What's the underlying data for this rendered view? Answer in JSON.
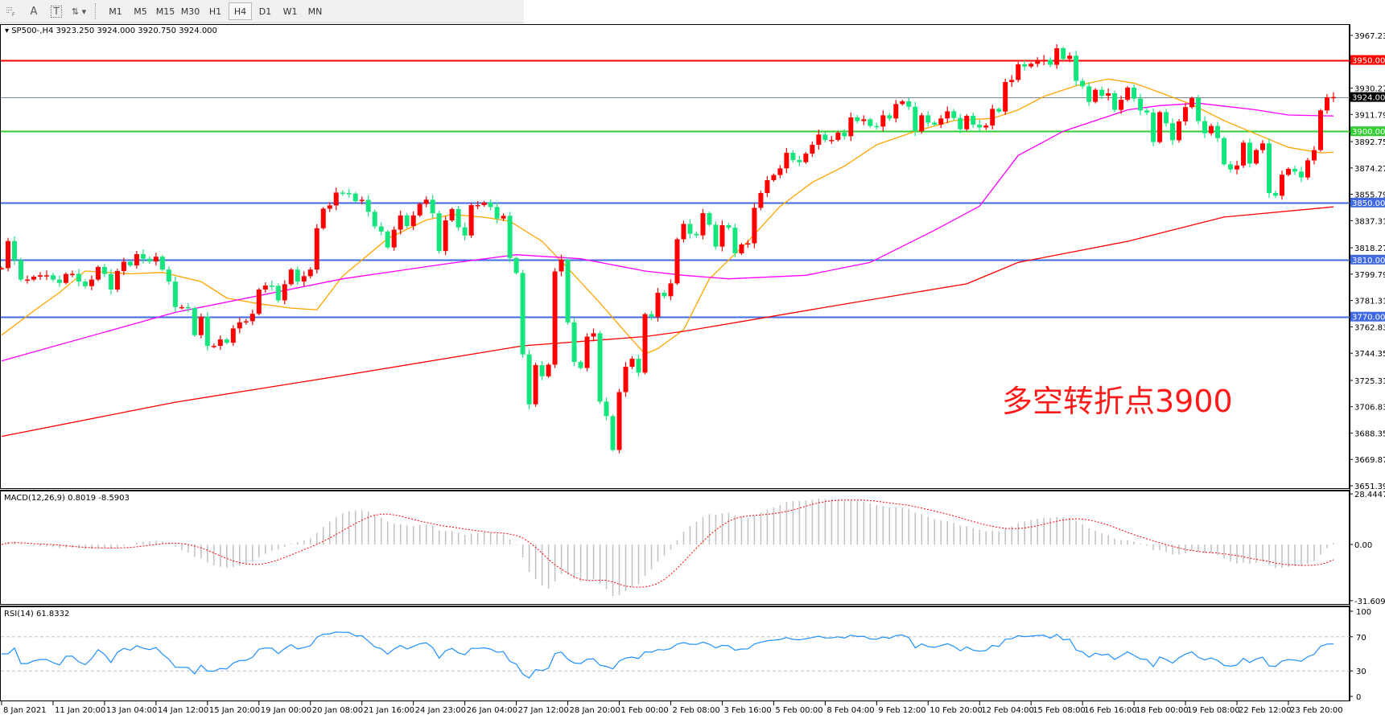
{
  "toolbar": {
    "tools": [
      {
        "icon": "grid-properties-icon",
        "label": ""
      },
      {
        "icon": "text-a-icon",
        "label": "A"
      },
      {
        "icon": "text-label-icon",
        "label": "T"
      },
      {
        "icon": "arrows-dropdown-icon",
        "label": ""
      }
    ],
    "timeframes": [
      "M1",
      "M5",
      "M15",
      "M30",
      "H1",
      "H4",
      "D1",
      "W1",
      "MN"
    ],
    "active_timeframe": "H4"
  },
  "chart_data": {
    "type": "candlestick",
    "header": "SP500-,H4  3923.250 3924.000 3920.750 3924.000",
    "bull_color": "#ff0000",
    "bear_color": "#14e67d",
    "ylim": [
      3651.39,
      3967.23
    ],
    "price_ticks": [
      "3967.230",
      "3930.270",
      "3911.790",
      "3892.750",
      "3874.270",
      "3855.790",
      "3837.310",
      "3818.270",
      "3799.790",
      "3781.310",
      "3762.830",
      "3744.350",
      "3725.310",
      "3706.830",
      "3688.350",
      "3669.870",
      "3651.390"
    ],
    "time_labels": [
      "8 Jan 2021",
      "11 Jan 20:00",
      "13 Jan 04:00",
      "14 Jan 12:00",
      "15 Jan 20:00",
      "19 Jan 00:00",
      "20 Jan 08:00",
      "21 Jan 16:00",
      "24 Jan 23:00",
      "26 Jan 04:00",
      "27 Jan 12:00",
      "28 Jan 20:00",
      "1 Feb 00:00",
      "2 Feb 08:00",
      "3 Feb 16:00",
      "5 Feb 00:00",
      "8 Feb 04:00",
      "9 Feb 12:00",
      "10 Feb 20:00",
      "12 Feb 04:00",
      "15 Feb 08:00",
      "16 Feb 16:00",
      "18 Feb 00:00",
      "19 Feb 08:00",
      "22 Feb 12:00",
      "23 Feb 20:00"
    ],
    "closes": [
      3804,
      3823,
      3809.6,
      3796,
      3796,
      3798,
      3799,
      3799,
      3796,
      3793.7,
      3799.9,
      3800,
      3794.6,
      3791.4,
      3796,
      3804.8,
      3799.9,
      3789,
      3802,
      3808.5,
      3805.9,
      3813.8,
      3810.6,
      3808.7,
      3812,
      3803,
      3794.6,
      3776.7,
      3776.7,
      3776,
      3757,
      3770,
      3749.5,
      3749.5,
      3754,
      3751.7,
      3761.7,
      3766,
      3766.8,
      3772,
      3789,
      3791.8,
      3791.6,
      3781.4,
      3792.7,
      3803,
      3794.6,
      3798.4,
      3803,
      3832,
      3845.7,
      3848,
      3857,
      3856.6,
      3856.3,
      3851,
      3851.9,
      3843.5,
      3833.3,
      3829.7,
      3818.5,
      3831,
      3841,
      3833.5,
      3841,
      3849,
      3852,
      3842.5,
      3816,
      3837.5,
      3845.4,
      3832.6,
      3826.9,
      3848.2,
      3848.2,
      3850,
      3846.9,
      3838.8,
      3840.7,
      3811.1,
      3800.6,
      3743.5,
      3708.5,
      3736,
      3728.2,
      3736.3,
      3801.7,
      3810,
      3766,
      3738.2,
      3734,
      3756,
      3758.3,
      3710.4,
      3700.2,
      3676.5,
      3717.1,
      3734.8,
      3740.5,
      3730.7,
      3771.7,
      3769.8,
      3786.7,
      3784.3,
      3793.3,
      3824.3,
      3835,
      3828.1,
      3827,
      3842.6,
      3834.5,
      3819.1,
      3834.1,
      3832.3,
      3814.4,
      3820.6,
      3821.4,
      3846.3,
      3856.7,
      3865.7,
      3869.3,
      3874,
      3884.9,
      3879.8,
      3878.3,
      3884.3,
      3890.5,
      3897.7,
      3893.9,
      3893.9,
      3899,
      3896.5,
      3909.7,
      3907.1,
      3908.4,
      3903.7,
      3903.3,
      3911.2,
      3909,
      3919.1,
      3921,
      3917.2,
      3900,
      3911.2,
      3906,
      3904.6,
      3909,
      3914,
      3909.3,
      3901.4,
      3910.8,
      3904.6,
      3902.6,
      3904,
      3915.7,
      3913.8,
      3934.5,
      3936,
      3946.9,
      3945.4,
      3947.3,
      3949.7,
      3950.1,
      3946.6,
      3958.2,
      3950.7,
      3953,
      3935.3,
      3931.5,
      3920.6,
      3929.1,
      3924.9,
      3926.6,
      3915,
      3922.1,
      3930.6,
      3922.9,
      3914.6,
      3913.1,
      3892.4,
      3913.4,
      3905.6,
      3893.7,
      3906.9,
      3916.9,
      3923.2,
      3907.1,
      3898.6,
      3903.7,
      3895.2,
      3876.8,
      3873.2,
      3876,
      3892,
      3877.4,
      3886.8,
      3891.5,
      3856.7,
      3854.8,
      3869.5,
      3873.6,
      3871.7,
      3867.6,
      3879.6,
      3886.8,
      3914.6,
      3923.8,
      3924
    ],
    "moving_averages": [
      {
        "color": "#ffa500",
        "points": [
          [
            0,
            3757
          ],
          [
            5,
            3774
          ],
          [
            9,
            3787
          ],
          [
            13,
            3802
          ],
          [
            20,
            3800
          ],
          [
            25,
            3801
          ],
          [
            31,
            3794.6
          ],
          [
            35,
            3783
          ],
          [
            40,
            3779
          ],
          [
            45,
            3776
          ],
          [
            49,
            3774.8
          ],
          [
            53,
            3798.4
          ],
          [
            55,
            3805.9
          ],
          [
            60,
            3824.7
          ],
          [
            66,
            3837.8
          ],
          [
            70,
            3841.6
          ],
          [
            75,
            3839.7
          ],
          [
            79,
            3836.9
          ],
          [
            84,
            3822.8
          ],
          [
            88,
            3804
          ],
          [
            93,
            3779.6
          ],
          [
            97,
            3758.9
          ],
          [
            100,
            3743.8
          ],
          [
            102,
            3747.6
          ],
          [
            106,
            3760.8
          ],
          [
            110,
            3796.5
          ],
          [
            116,
            3822.8
          ],
          [
            121,
            3847.3
          ],
          [
            126,
            3864.2
          ],
          [
            131,
            3875.5
          ],
          [
            136,
            3890.5
          ],
          [
            142,
            3899.9
          ],
          [
            148,
            3907.5
          ],
          [
            154,
            3909
          ],
          [
            158,
            3915
          ],
          [
            162,
            3924.4
          ],
          [
            167,
            3931.9
          ],
          [
            172,
            3936.6
          ],
          [
            176,
            3933.8
          ],
          [
            180,
            3927.2
          ],
          [
            185,
            3918.7
          ],
          [
            190,
            3907.5
          ],
          [
            195,
            3898
          ],
          [
            200,
            3888.7
          ],
          [
            205,
            3884.9
          ],
          [
            207,
            3885.3
          ]
        ]
      },
      {
        "color": "#ff00ff",
        "points": [
          [
            0,
            3739
          ],
          [
            27,
            3773
          ],
          [
            53,
            3796.5
          ],
          [
            69,
            3807
          ],
          [
            80,
            3813.4
          ],
          [
            90,
            3810.6
          ],
          [
            100,
            3802
          ],
          [
            106,
            3799
          ],
          [
            113,
            3796.5
          ],
          [
            125,
            3799
          ],
          [
            135,
            3808
          ],
          [
            145,
            3830.6
          ],
          [
            152,
            3847.5
          ],
          [
            158,
            3883
          ],
          [
            165,
            3900
          ],
          [
            175,
            3915
          ],
          [
            180,
            3918
          ],
          [
            186,
            3919.7
          ],
          [
            195,
            3915
          ],
          [
            200,
            3911.4
          ],
          [
            207,
            3910.7
          ]
        ]
      },
      {
        "color": "#ff0000",
        "points": [
          [
            0,
            3686
          ],
          [
            27,
            3710
          ],
          [
            53,
            3728.7
          ],
          [
            81,
            3749.5
          ],
          [
            100,
            3756
          ],
          [
            106,
            3759.7
          ],
          [
            131,
            3778.8
          ],
          [
            150,
            3793
          ],
          [
            158,
            3808
          ],
          [
            175,
            3822.8
          ],
          [
            190,
            3839.8
          ],
          [
            207,
            3847
          ]
        ]
      }
    ],
    "horizontal_lines": [
      {
        "price": 3950,
        "label": "3950.000",
        "color": "#ff0000"
      },
      {
        "price": 3924,
        "label": "3924.000",
        "color": "#778899",
        "tag_color": "#000000"
      },
      {
        "price": 3900,
        "label": "3900.000",
        "color": "#32cd32"
      },
      {
        "price": 3850,
        "label": "3850.000",
        "color": "#4169e1"
      },
      {
        "price": 3810,
        "label": "3810.000",
        "color": "#4169e1"
      },
      {
        "price": 3770,
        "label": "3770.000",
        "color": "#4169e1"
      }
    ],
    "annotation": {
      "text": "多空转折点3900",
      "color": "#ff1a1a"
    }
  },
  "macd": {
    "label": "MACD(12,26,9) 0.8019 -8.5903",
    "ticks": [
      "28.4447",
      "0.00",
      "-31.6096"
    ],
    "hist_color": "#c0c0c0",
    "signal_color": "#ff0000"
  },
  "rsi": {
    "label": "RSI(14) 61.8332",
    "ticks": [
      "100",
      "70",
      "30",
      "0"
    ],
    "levels": [
      70,
      30
    ],
    "line_color": "#1e90ff"
  }
}
